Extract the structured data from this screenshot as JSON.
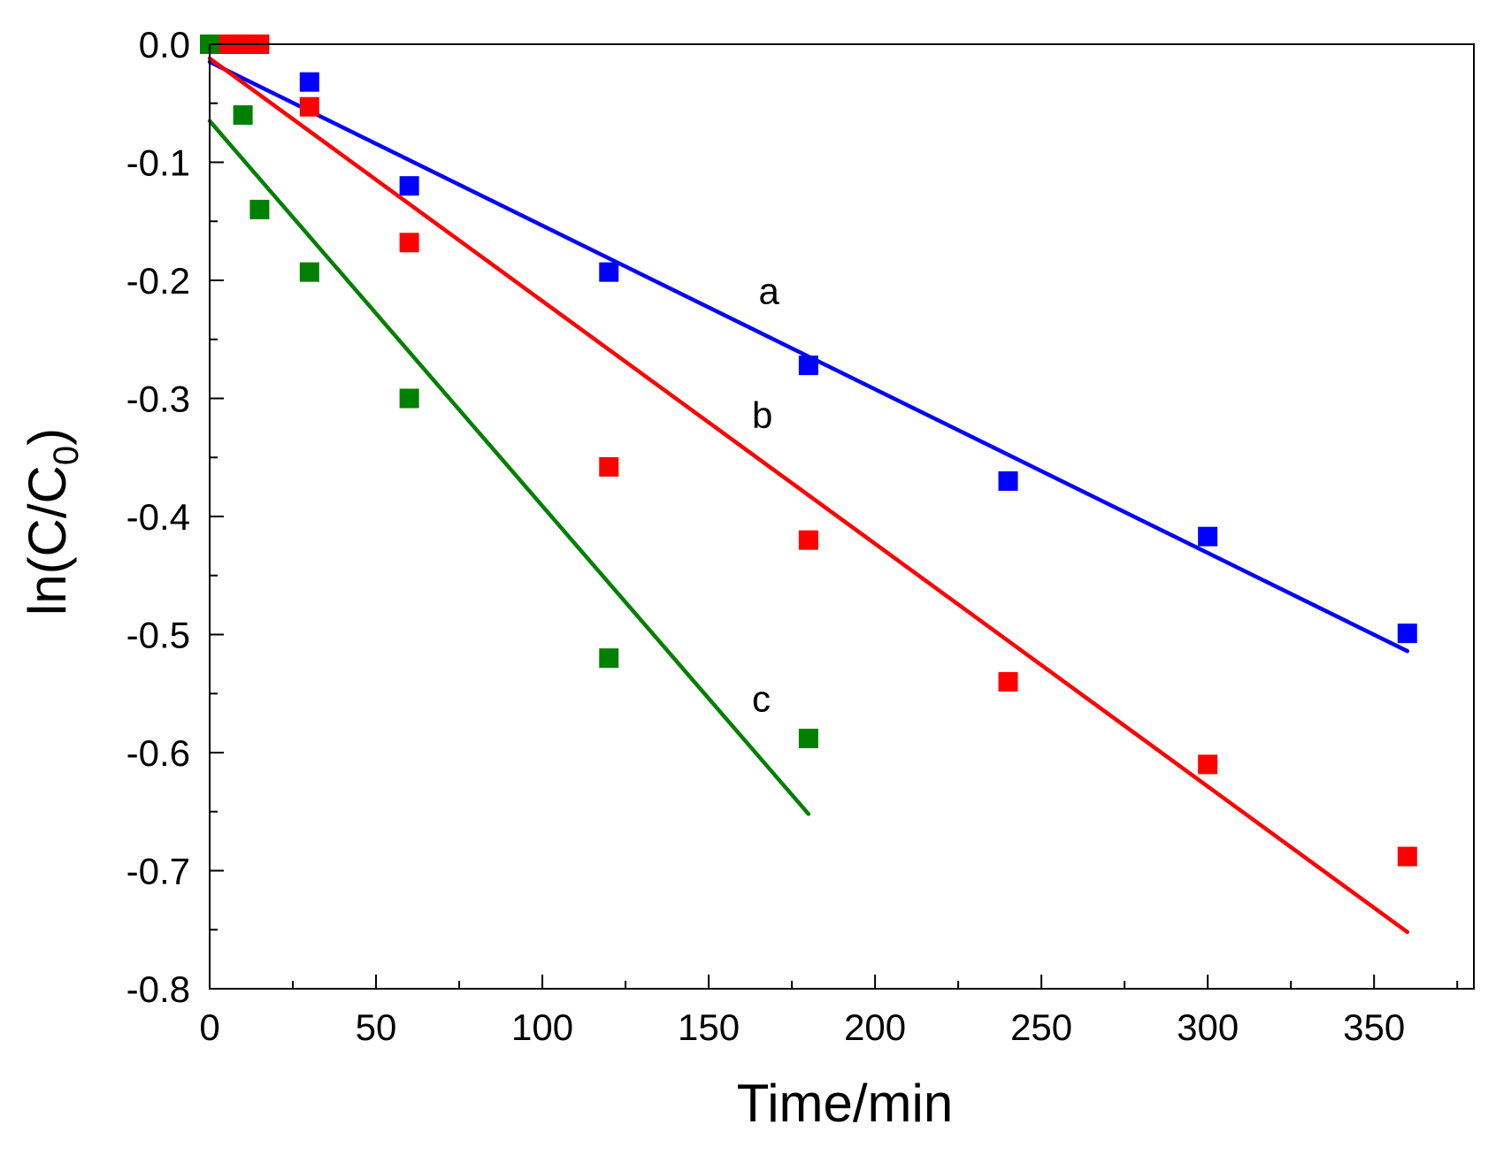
{
  "chart_data": {
    "type": "scatter",
    "title": "",
    "xlabel": "Time/min",
    "ylabel": "ln(C/C",
    "ylabel_sub": "0",
    "ylabel_close": ")",
    "xlim": [
      0,
      380
    ],
    "ylim": [
      -0.8,
      0.0
    ],
    "xticks": [
      0,
      50,
      100,
      150,
      200,
      250,
      300,
      350
    ],
    "xtick_labels": [
      "0",
      "50",
      "100",
      "150",
      "200",
      "250",
      "300",
      "350"
    ],
    "yticks": [
      0.0,
      -0.1,
      -0.2,
      -0.3,
      -0.4,
      -0.5,
      -0.6,
      -0.7,
      -0.8
    ],
    "ytick_labels": [
      "0.0",
      "-0.1",
      "-0.2",
      "-0.3",
      "-0.4",
      "-0.5",
      "-0.6",
      "-0.7",
      "-0.8"
    ],
    "grid": false,
    "legend": "none",
    "series": [
      {
        "name": "a",
        "color": "#0000ff",
        "points": [
          [
            0,
            0.0
          ],
          [
            30,
            -0.032
          ],
          [
            60,
            -0.12
          ],
          [
            120,
            -0.193
          ],
          [
            180,
            -0.272
          ],
          [
            240,
            -0.37
          ],
          [
            300,
            -0.417
          ],
          [
            360,
            -0.499
          ]
        ],
        "fit": {
          "x": [
            0,
            360
          ],
          "y": [
            -0.015,
            -0.514
          ]
        },
        "label": "a",
        "label_at": [
          165,
          -0.22
        ]
      },
      {
        "name": "b",
        "color": "#ff0000",
        "points": [
          [
            5,
            0.0
          ],
          [
            10,
            0.0
          ],
          [
            15,
            0.0
          ],
          [
            30,
            -0.053
          ],
          [
            60,
            -0.168
          ],
          [
            120,
            -0.358
          ],
          [
            180,
            -0.42
          ],
          [
            240,
            -0.54
          ],
          [
            300,
            -0.61
          ],
          [
            360,
            -0.688
          ]
        ],
        "fit": {
          "x": [
            0,
            360
          ],
          "y": [
            -0.012,
            -0.752
          ]
        },
        "label": "b",
        "label_at": [
          163,
          -0.325
        ]
      },
      {
        "name": "c",
        "color": "#008000",
        "points": [
          [
            0,
            0.0
          ],
          [
            10,
            -0.06
          ],
          [
            15,
            -0.14
          ],
          [
            30,
            -0.193
          ],
          [
            60,
            -0.3
          ],
          [
            120,
            -0.52
          ],
          [
            180,
            -0.588
          ]
        ],
        "fit": {
          "x": [
            0,
            180
          ],
          "y": [
            -0.065,
            -0.652
          ]
        },
        "label": "c",
        "label_at": [
          163,
          -0.565
        ]
      }
    ]
  }
}
